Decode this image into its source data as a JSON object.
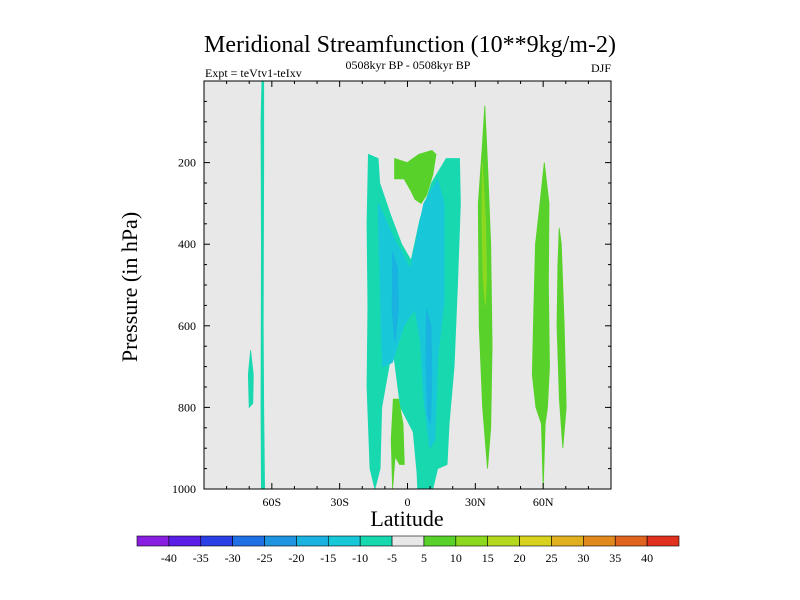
{
  "chart_data": {
    "type": "filled-contour",
    "title": "Meridional Streamfunction (10**9kg/m-2)",
    "left_string": "Expt = teVtv1-teIxv",
    "center_string": "0508kyr BP - 0508kyr BP",
    "right_string": "DJF",
    "xlabel": "Latitude",
    "ylabel": "Pressure (in hPa)",
    "xlim": [
      -90,
      90
    ],
    "ylim": [
      0,
      1000
    ],
    "y_inverted": true,
    "background_color": "#e8e8e8",
    "x_ticks": [
      {
        "value": -60,
        "label": "60S"
      },
      {
        "value": -30,
        "label": "30S"
      },
      {
        "value": 0,
        "label": "0"
      },
      {
        "value": 30,
        "label": "30N"
      },
      {
        "value": 60,
        "label": "60N"
      }
    ],
    "y_ticks": [
      {
        "value": 200,
        "label": "200"
      },
      {
        "value": 400,
        "label": "400"
      },
      {
        "value": 600,
        "label": "600"
      },
      {
        "value": 800,
        "label": "800"
      },
      {
        "value": 1000,
        "label": "1000"
      }
    ],
    "colorbar": {
      "levels": [
        "-40",
        "-35",
        "-30",
        "-25",
        "-20",
        "-15",
        "-10",
        "-5",
        "5",
        "10",
        "15",
        "20",
        "25",
        "30",
        "35",
        "40"
      ],
      "colors": [
        "#8a1ee0",
        "#5a1ee6",
        "#2a3fe6",
        "#1f6fe6",
        "#1e95e0",
        "#1ab2e0",
        "#18c8d8",
        "#18d8b0",
        "#e8e8e8",
        "#58d22a",
        "#8cd81e",
        "#b4d81e",
        "#d8d21e",
        "#e0b01e",
        "#e08a1e",
        "#e0641e",
        "#e0301e"
      ]
    },
    "regions": [
      {
        "name": "contour-neg-5-far-south-a",
        "color": "#18d8b0",
        "points": [
          [
            -64.4,
            0
          ],
          [
            -63.6,
            0
          ],
          [
            -63.6,
            200
          ],
          [
            -63.8,
            600
          ],
          [
            -63.6,
            800
          ],
          [
            -63.2,
            1000
          ],
          [
            -63.6,
            1100
          ],
          [
            -64.6,
            1000
          ],
          [
            -64.8,
            800
          ],
          [
            -64.6,
            400
          ],
          [
            -64.8,
            100
          ]
        ]
      },
      {
        "name": "contour-neg-5-far-south-b",
        "color": "#18d8b0",
        "points": [
          [
            -69.4,
            660
          ],
          [
            -68.2,
            720
          ],
          [
            -68.4,
            790
          ],
          [
            -70.0,
            800
          ],
          [
            -70.4,
            720
          ]
        ]
      },
      {
        "name": "contour-neg-5-southern-cell",
        "color": "#18d8b0",
        "points": [
          [
            -17.3,
            180
          ],
          [
            -13.0,
            190
          ],
          [
            -12.3,
            250
          ],
          [
            -7.4,
            330
          ],
          [
            -2.6,
            400
          ],
          [
            1.6,
            440
          ],
          [
            5.5,
            340
          ],
          [
            10.6,
            250
          ],
          [
            17.1,
            190
          ],
          [
            23.0,
            190
          ],
          [
            23.4,
            300
          ],
          [
            22.1,
            500
          ],
          [
            20.6,
            700
          ],
          [
            18.4,
            840
          ],
          [
            17.5,
            940
          ],
          [
            13.3,
            950
          ],
          [
            9.0,
            1050
          ],
          [
            5.1,
            1070
          ],
          [
            4.2,
            960
          ],
          [
            2.5,
            860
          ],
          [
            -3.1,
            800
          ],
          [
            -6.6,
            650
          ],
          [
            -11.4,
            800
          ],
          [
            -12.1,
            950
          ],
          [
            -14.4,
            1000
          ],
          [
            -16.6,
            950
          ],
          [
            -17.9,
            750
          ],
          [
            -17.5,
            550
          ],
          [
            -17.9,
            350
          ]
        ]
      },
      {
        "name": "contour-neg-10-core",
        "color": "#18c8d8",
        "points": [
          [
            -13.0,
            300
          ],
          [
            -6.4,
            380
          ],
          [
            -1.6,
            430
          ],
          [
            1.2,
            460
          ],
          [
            7.2,
            300
          ],
          [
            13.3,
            240
          ],
          [
            16.2,
            300
          ],
          [
            16.2,
            540
          ],
          [
            13.3,
            680
          ],
          [
            12.8,
            780
          ],
          [
            12.1,
            880
          ],
          [
            9.9,
            900
          ],
          [
            7.2,
            780
          ],
          [
            5.8,
            640
          ],
          [
            3.3,
            560
          ],
          [
            -1.7,
            600
          ],
          [
            -6.7,
            690
          ],
          [
            -11.1,
            700
          ],
          [
            -11.8,
            560
          ],
          [
            -12.7,
            380
          ]
        ]
      },
      {
        "name": "contour-neg-15-center",
        "color": "#1ab2e0",
        "points": [
          [
            8.4,
            560
          ],
          [
            10.4,
            600
          ],
          [
            10.8,
            720
          ],
          [
            10.2,
            840
          ],
          [
            8.8,
            820
          ],
          [
            8.1,
            700
          ]
        ]
      },
      {
        "name": "contour-neg-15-left",
        "color": "#1ab2e0",
        "points": [
          [
            -6.6,
            420
          ],
          [
            -4.4,
            460
          ],
          [
            -4.0,
            560
          ],
          [
            -5.6,
            640
          ],
          [
            -6.8,
            560
          ]
        ]
      },
      {
        "name": "contour-pos-5-upper",
        "color": "#58d22a",
        "points": [
          [
            -5.7,
            190
          ],
          [
            -0.1,
            200
          ],
          [
            5.0,
            180
          ],
          [
            10.8,
            170
          ],
          [
            12.6,
            180
          ],
          [
            11.2,
            230
          ],
          [
            8.4,
            280
          ],
          [
            6.0,
            300
          ],
          [
            3.3,
            290
          ],
          [
            1.6,
            270
          ],
          [
            -1.5,
            240
          ],
          [
            -5.7,
            240
          ]
        ]
      },
      {
        "name": "contour-pos-5-lower",
        "color": "#58d22a",
        "points": [
          [
            -6.3,
            780
          ],
          [
            -4.0,
            780
          ],
          [
            -2.0,
            840
          ],
          [
            -1.4,
            940
          ],
          [
            -3.5,
            940
          ],
          [
            -5.5,
            920
          ],
          [
            -6.6,
            1000
          ],
          [
            -7.2,
            880
          ]
        ]
      },
      {
        "name": "contour-pos-5-30N",
        "color": "#58d22a",
        "points": [
          [
            34.2,
            60
          ],
          [
            35.4,
            200
          ],
          [
            36.8,
            400
          ],
          [
            37.4,
            650
          ],
          [
            36.8,
            850
          ],
          [
            35.4,
            950
          ],
          [
            33.2,
            800
          ],
          [
            31.7,
            600
          ],
          [
            31.3,
            300
          ],
          [
            33.1,
            160
          ]
        ]
      },
      {
        "name": "contour-pos-10-30N",
        "color": "#8cd81e",
        "points": [
          [
            33.1,
            200
          ],
          [
            34.5,
            340
          ],
          [
            35.0,
            480
          ],
          [
            34.4,
            550
          ],
          [
            33.4,
            480
          ],
          [
            32.9,
            340
          ]
        ]
      },
      {
        "name": "contour-pos-5-60N-west",
        "color": "#58d22a",
        "points": [
          [
            60.5,
            200
          ],
          [
            62.6,
            300
          ],
          [
            62.3,
            500
          ],
          [
            62.8,
            700
          ],
          [
            61.9,
            800
          ],
          [
            60.9,
            840
          ],
          [
            60.0,
            1000
          ],
          [
            59.2,
            840
          ],
          [
            56.8,
            800
          ],
          [
            55.2,
            720
          ],
          [
            55.7,
            600
          ],
          [
            56.6,
            400
          ],
          [
            58.6,
            300
          ]
        ]
      },
      {
        "name": "contour-pos-5-60N-east",
        "color": "#58d22a",
        "points": [
          [
            67.1,
            360
          ],
          [
            68.0,
            400
          ],
          [
            69.3,
            600
          ],
          [
            70.2,
            800
          ],
          [
            68.7,
            900
          ],
          [
            67.2,
            780
          ],
          [
            66.1,
            600
          ],
          [
            66.5,
            450
          ]
        ]
      }
    ]
  }
}
